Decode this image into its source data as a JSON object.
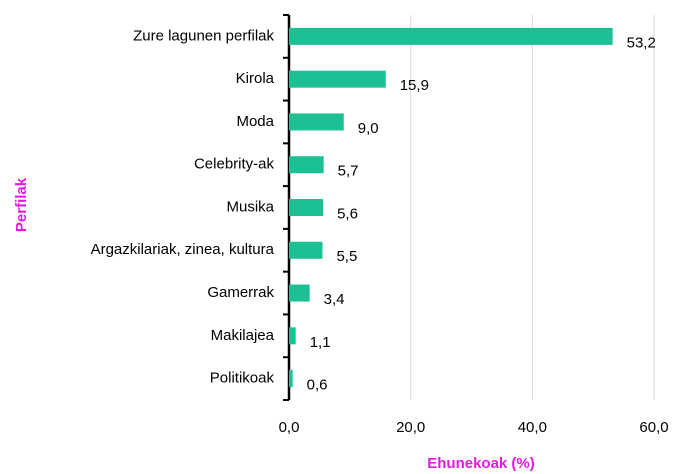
{
  "chart_data": {
    "type": "bar",
    "orientation": "horizontal",
    "y_label": "Perfilak",
    "x_label": "Ehunekoak (%)",
    "categories": [
      "Zure lagunen perfilak",
      "Kirola",
      "Moda",
      "Celebrity-ak",
      "Musika",
      "Argazkilariak, zinea, kultura",
      "Gamerrak",
      "Makilajea",
      "Politikoak"
    ],
    "values": [
      53.2,
      15.9,
      9.0,
      5.7,
      5.6,
      5.5,
      3.4,
      1.1,
      0.6
    ],
    "value_labels": [
      "53,2",
      "15,9",
      "9,0",
      "5,7",
      "5,6",
      "5,5",
      "3,4",
      "1,1",
      "0,6"
    ],
    "color": "#1dbf94",
    "xlim": [
      0,
      60
    ],
    "xticks": [
      {
        "value": 0,
        "label": "0,0"
      },
      {
        "value": 20,
        "label": "20,0"
      },
      {
        "value": 40,
        "label": "40,0"
      },
      {
        "value": 60,
        "label": "60,0"
      }
    ],
    "grid": true
  }
}
